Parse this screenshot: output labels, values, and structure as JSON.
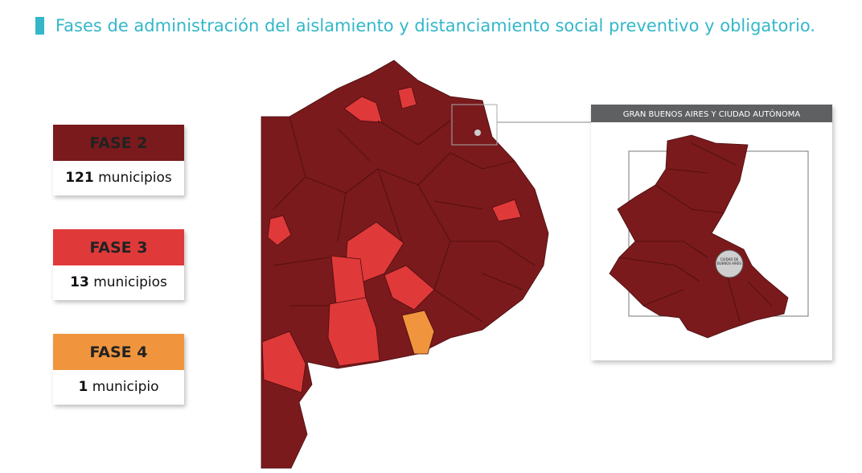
{
  "title": "Fases de administración del aislamiento y distanciamiento social preventivo y obligatorio.",
  "legend": [
    {
      "phase": "FASE 2",
      "count": 121,
      "unit": "municipios",
      "color": "#7a1a1c"
    },
    {
      "phase": "FASE 3",
      "count": 13,
      "unit": "municipios",
      "color": "#e0393a"
    },
    {
      "phase": "FASE 4",
      "count": 1,
      "unit": "municipio",
      "color": "#f0953e"
    }
  ],
  "inset": {
    "title": "GRAN BUENOS AIRES Y CIUDAD AUTÓNOMA",
    "city_label": "CIUDAD DE BUENOS AIRES"
  }
}
